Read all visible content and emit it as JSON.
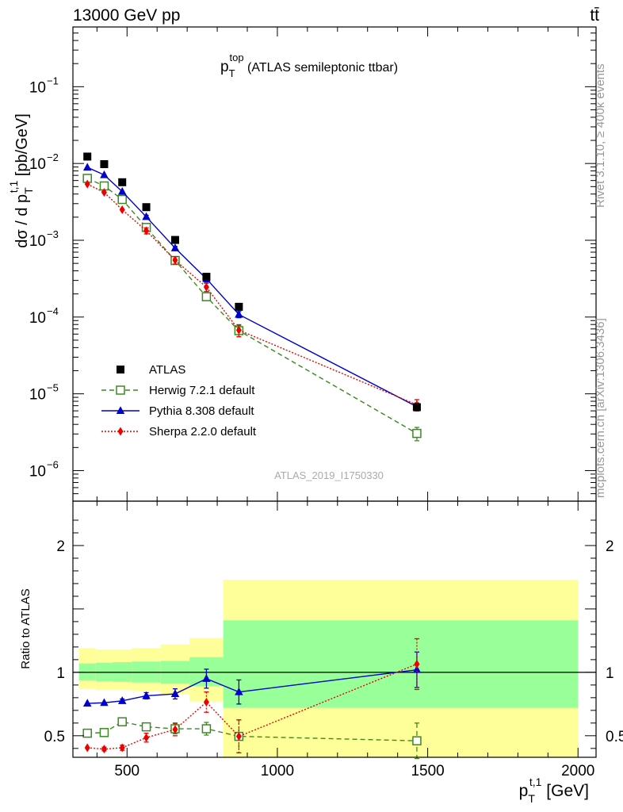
{
  "header": {
    "energy": "13000 GeV pp",
    "process": "tt̄"
  },
  "side_labels": {
    "rivet": "Rivet 3.1.10, ≥ 400k events",
    "source": "mcplots.cern.ch [arXiv:1306.3436]"
  },
  "watermark": "ATLAS_2019_I1750330",
  "chart_data": [
    {
      "type": "line",
      "panel": "main",
      "title": {
        "main": "p",
        "sub": "T",
        "sup": "top",
        "rest": " (ATLAS semileptonic ttbar)"
      },
      "ylabel": {
        "pre": "dσ / d p",
        "sub": "T",
        "sup": "t,1",
        "post": " [pb/GeV]"
      },
      "yscale": "log",
      "ylim": [
        4e-07,
        0.6
      ],
      "xlim": [
        320,
        2060
      ],
      "ytick_labels": [
        {
          "base": "10",
          "exp": "−6",
          "value": 1e-06
        },
        {
          "base": "10",
          "exp": "−5",
          "value": 1e-05
        },
        {
          "base": "10",
          "exp": "−4",
          "value": 0.0001
        },
        {
          "base": "10",
          "exp": "−3",
          "value": 0.001
        },
        {
          "base": "10",
          "exp": "−2",
          "value": 0.01
        },
        {
          "base": "10",
          "exp": "−1",
          "value": 0.1
        }
      ],
      "legend_position": "bottom-left",
      "x": [
        368,
        424,
        484,
        564,
        660,
        764,
        872,
        1464
      ],
      "series": [
        {
          "name": "ATLAS",
          "color": "#000000",
          "marker": "square-filled",
          "line": "none",
          "values": [
            0.0123,
            0.0098,
            0.0057,
            0.0027,
            0.00101,
            0.000335,
            0.000136,
            6.7e-06
          ]
        },
        {
          "name": "Herwig 7.2.1 default",
          "color": "#3a8a1e",
          "marker": "square-open",
          "line": "dashed",
          "values": [
            0.0064,
            0.0051,
            0.0034,
            0.00147,
            0.000545,
            0.000184,
            6.65e-05,
            3.05e-06
          ],
          "errors": [
            0,
            0,
            0,
            0.00015,
            6e-05,
            2e-05,
            1.1e-05,
            6e-07
          ]
        },
        {
          "name": "Pythia 8.308 default",
          "color": "#0000cc",
          "marker": "triangle-filled",
          "line": "solid",
          "values": [
            0.0089,
            0.0071,
            0.0043,
            0.00202,
            0.00079,
            0.000315,
            0.000108,
            6.8e-06
          ],
          "errors": [
            0,
            0,
            0,
            0.0001,
            4e-05,
            3e-05,
            1e-05,
            8e-07
          ]
        },
        {
          "name": "Sherpa 2.2.0 default",
          "color": "#ee0000",
          "marker": "diamond-filled",
          "line": "dotted",
          "values": [
            0.0054,
            0.0042,
            0.0025,
            0.00133,
            0.00055,
            0.000245,
            6.75e-05,
            7.2e-06
          ],
          "errors": [
            0,
            0,
            0,
            0.00012,
            6e-05,
            3e-05,
            1.2e-05,
            1.2e-06
          ]
        }
      ]
    },
    {
      "type": "line",
      "panel": "ratio",
      "ylabel": "Ratio to ATLAS",
      "ylim": [
        0.33,
        2.35
      ],
      "xlim": [
        320,
        2060
      ],
      "yticks": [
        0.5,
        1,
        2
      ],
      "ytick_labels": [
        "0.5",
        "1",
        "2"
      ],
      "xticks": [
        500,
        1000,
        1500,
        2000
      ],
      "xtick_labels": [
        "500",
        "1000",
        "1500",
        "2000"
      ],
      "xlabel": {
        "pre": "p",
        "sub": "T",
        "sup": "t,1",
        "post": " [GeV]"
      },
      "reference_line": 1,
      "uncertainty_bands": [
        {
          "x0": 340,
          "x1": 396,
          "stat_lo": 0.935,
          "stat_hi": 1.07,
          "total_lo": 0.87,
          "total_hi": 1.19
        },
        {
          "x0": 396,
          "x1": 452,
          "stat_lo": 0.93,
          "stat_hi": 1.075,
          "total_lo": 0.86,
          "total_hi": 1.18
        },
        {
          "x0": 452,
          "x1": 516,
          "stat_lo": 0.925,
          "stat_hi": 1.08,
          "total_lo": 0.86,
          "total_hi": 1.18
        },
        {
          "x0": 516,
          "x1": 612,
          "stat_lo": 0.92,
          "stat_hi": 1.085,
          "total_lo": 0.855,
          "total_hi": 1.19
        },
        {
          "x0": 612,
          "x1": 708,
          "stat_lo": 0.91,
          "stat_hi": 1.09,
          "total_lo": 0.83,
          "total_hi": 1.22
        },
        {
          "x0": 708,
          "x1": 820,
          "stat_lo": 0.89,
          "stat_hi": 1.12,
          "total_lo": 0.77,
          "total_hi": 1.27
        },
        {
          "x0": 820,
          "x1": 2000,
          "stat_lo": 0.72,
          "stat_hi": 1.41,
          "total_lo": 0.33,
          "total_hi": 1.73
        }
      ],
      "x": [
        368,
        424,
        484,
        564,
        660,
        764,
        872,
        1464
      ],
      "series": [
        {
          "name": "Herwig 7.2.1 default",
          "color": "#3a8a1e",
          "marker": "square-open",
          "line": "dashed",
          "values": [
            0.52,
            0.525,
            0.61,
            0.57,
            0.555,
            0.555,
            0.495,
            0.46
          ],
          "errors": [
            0,
            0,
            0,
            0.025,
            0.04,
            0.05,
            0.13,
            0.14
          ]
        },
        {
          "name": "Pythia 8.308 default",
          "color": "#0000cc",
          "marker": "triangle-filled",
          "line": "solid",
          "values": [
            0.755,
            0.76,
            0.775,
            0.815,
            0.83,
            0.95,
            0.845,
            1.02
          ],
          "errors": [
            0,
            0,
            0.015,
            0.025,
            0.04,
            0.075,
            0.095,
            0.14
          ]
        },
        {
          "name": "Sherpa 2.2.0 default",
          "color": "#ee0000",
          "marker": "diamond-filled",
          "line": "dotted",
          "values": [
            0.405,
            0.395,
            0.405,
            0.485,
            0.55,
            0.765,
            0.495,
            1.065
          ],
          "errors": [
            0,
            0.015,
            0.02,
            0.035,
            0.05,
            0.08,
            0.13,
            0.2
          ]
        }
      ]
    }
  ]
}
